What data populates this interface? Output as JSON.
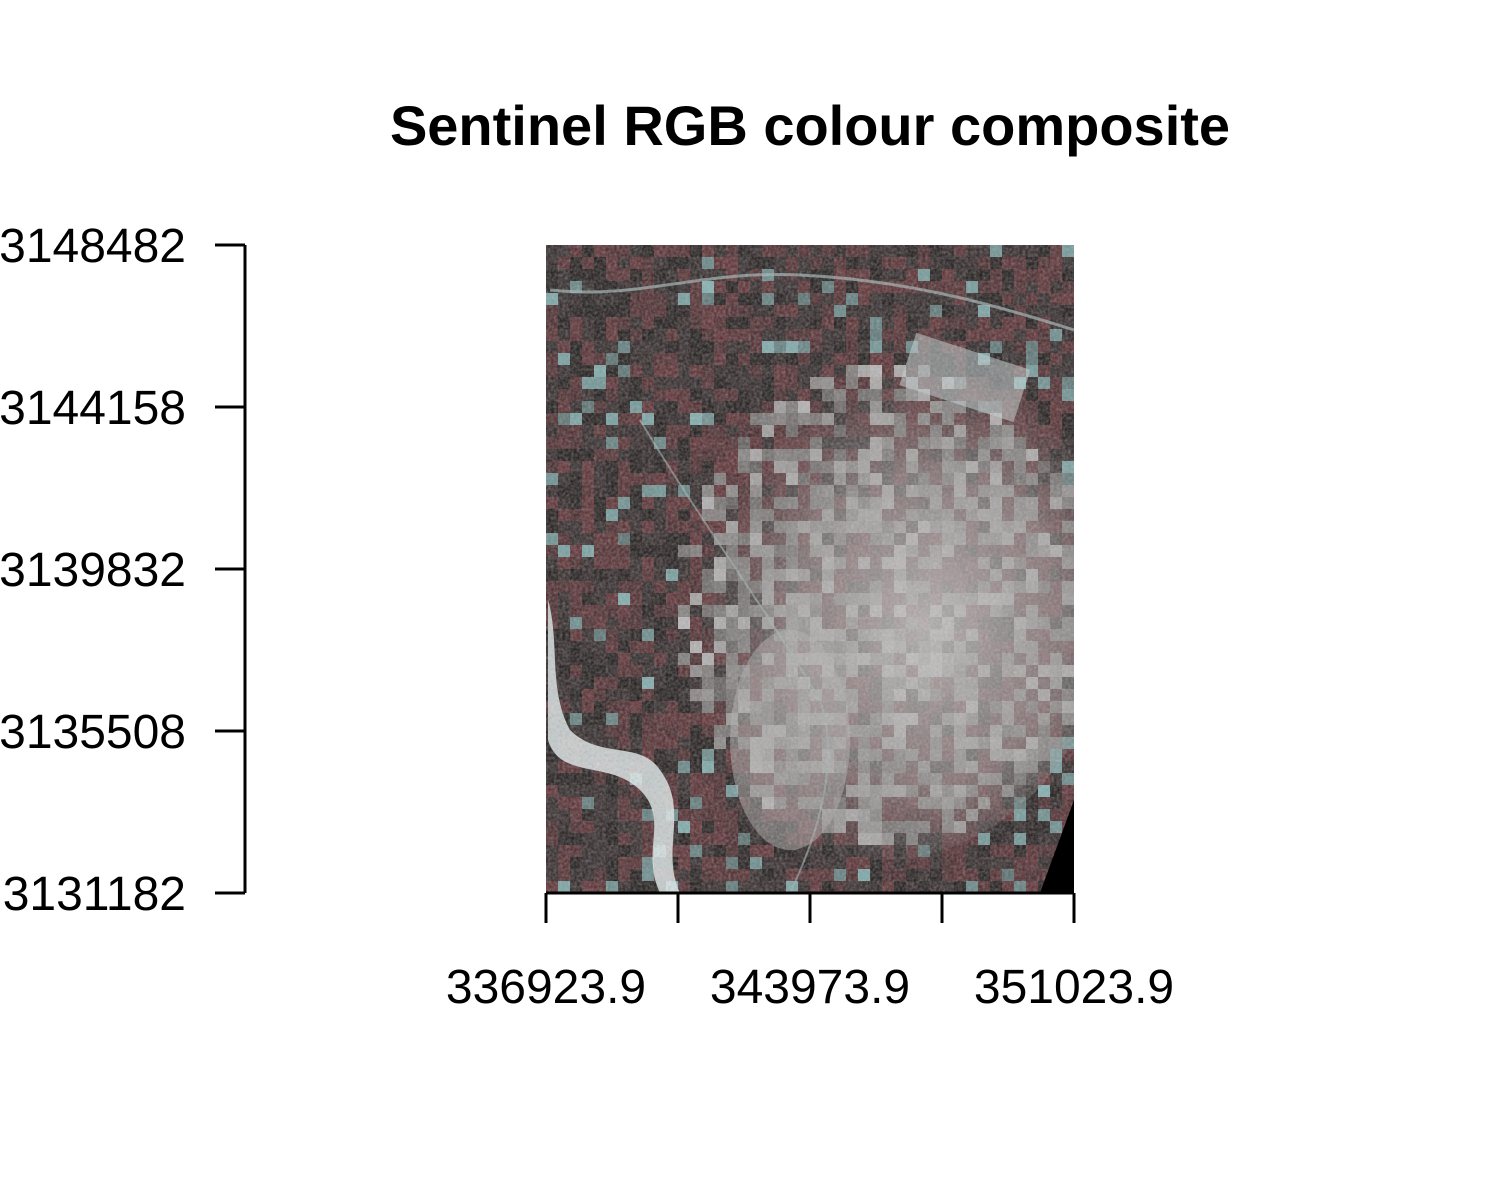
{
  "chart_data": {
    "type": "image",
    "title": "Sentinel RGB colour composite",
    "xlabel": "",
    "ylabel": "",
    "x_axis": {
      "ticks": [
        336923.9,
        340448.9,
        343973.9,
        347498.9,
        351023.9
      ],
      "labels": [
        "336923.9",
        "",
        "343973.9",
        "",
        "351023.9"
      ],
      "range": [
        336923.9,
        351023.9
      ]
    },
    "y_axis": {
      "ticks": [
        3131182,
        3135508,
        3139832,
        3144158,
        3148482
      ],
      "labels": [
        "3131182",
        "3135508",
        "3139832",
        "3144158",
        "3148482"
      ],
      "range": [
        3131182,
        3148482
      ]
    },
    "grid": false,
    "legend": "none",
    "raster": {
      "description": "satellite false-colour image of urban area with river on left",
      "colors": {
        "dark": "#1a1414",
        "vegetation": "#2e2424",
        "urban": "#b9b6b6",
        "water": "#e8eeee",
        "cyan_tint": "#7fb0b0",
        "red_tint": "#5a2a2e"
      }
    }
  }
}
